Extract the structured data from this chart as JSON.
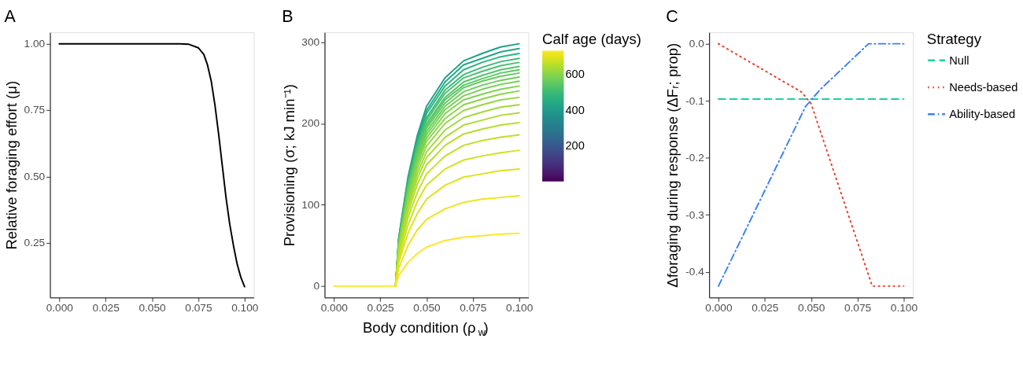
{
  "chart_data": [
    {
      "type": "line",
      "title": "A",
      "ylabel": "Relative foraging effort (μ)",
      "xlim": [
        -0.005,
        0.105
      ],
      "xticks": [
        {
          "value": 0,
          "label": "0.000"
        },
        {
          "value": 0.025,
          "label": "0.025"
        },
        {
          "value": 0.05,
          "label": "0.050"
        },
        {
          "value": 0.075,
          "label": "0.075"
        },
        {
          "value": 0.1,
          "label": "0.100"
        }
      ],
      "ylim": [
        0.044,
        1.043
      ],
      "yticks": [
        {
          "value": 0.25,
          "label": "0.25"
        },
        {
          "value": 0.5,
          "label": "0.50"
        },
        {
          "value": 0.75,
          "label": "0.75"
        },
        {
          "value": 1,
          "label": "1.00"
        }
      ],
      "grid": false,
      "legend": false,
      "x": [
        0,
        0.065,
        0.07,
        0.075,
        0.078,
        0.08,
        0.082,
        0.084,
        0.086,
        0.088,
        0.09,
        0.092,
        0.094,
        0.096,
        0.098,
        0.1
      ],
      "series": [
        {
          "color": "#000000",
          "values": [
            1,
            1,
            0.998,
            0.985,
            0.96,
            0.92,
            0.86,
            0.77,
            0.66,
            0.54,
            0.42,
            0.32,
            0.24,
            0.17,
            0.12,
            0.085
          ]
        }
      ]
    },
    {
      "type": "line",
      "title": "B",
      "xlabel": "Body condition (ρ$_{w}$)",
      "ylabel": "Provisioning (σ; kJ min⁻¹)",
      "clabel": "Calf age (days)",
      "clim": [
        1,
        730
      ],
      "cticks": [
        200,
        400,
        600
      ],
      "xlim": [
        -0.005,
        0.105
      ],
      "xticks": [
        {
          "value": 0,
          "label": "0.000"
        },
        {
          "value": 0.025,
          "label": "0.025"
        },
        {
          "value": 0.05,
          "label": "0.050"
        },
        {
          "value": 0.075,
          "label": "0.075"
        },
        {
          "value": 0.1,
          "label": "0.100"
        }
      ],
      "ylim": [
        -14,
        312
      ],
      "yticks": [
        0,
        100,
        200,
        300
      ],
      "grid": false,
      "legend": false,
      "x": [
        0,
        0.0333,
        0.035,
        0.04,
        0.045,
        0.05,
        0.06,
        0.07,
        0.08,
        0.09,
        0.1
      ],
      "series": [
        {
          "color": "#1fa088",
          "values": [
            null,
            0,
            60,
            134,
            185,
            221,
            256,
            277,
            286,
            294,
            298
          ]
        },
        {
          "color": "#22a884",
          "values": [
            null,
            0,
            58,
            131,
            181,
            216,
            251,
            272,
            280,
            288,
            292
          ]
        },
        {
          "color": "#2eb37c",
          "values": [
            null,
            0,
            57,
            129,
            177,
            212,
            246,
            266,
            275,
            282,
            286
          ]
        },
        {
          "color": "#3bbb75",
          "values": [
            null,
            0,
            56,
            126,
            174,
            207,
            241,
            260,
            269,
            276,
            280
          ]
        },
        {
          "color": "#48c16e",
          "values": [
            null,
            0,
            55,
            124,
            171,
            204,
            237,
            256,
            264,
            271,
            275
          ]
        },
        {
          "color": "#52c569",
          "values": [
            null,
            0,
            54,
            122,
            167,
            200,
            232,
            251,
            259,
            266,
            270
          ]
        },
        {
          "color": "#5ac864",
          "values": [
            null,
            0,
            53,
            120,
            165,
            197,
            229,
            247,
            255,
            262,
            266
          ]
        },
        {
          "color": "#63cb5f",
          "values": [
            null,
            0,
            52,
            118,
            162,
            194,
            225,
            244,
            252,
            258,
            262
          ]
        },
        {
          "color": "#6ccd5a",
          "values": [
            null,
            0,
            51,
            116,
            159,
            190,
            221,
            239,
            247,
            253,
            257
          ]
        },
        {
          "color": "#75d054",
          "values": [
            null,
            0,
            50,
            113,
            156,
            186,
            217,
            234,
            242,
            248,
            252
          ]
        },
        {
          "color": "#7fd34e",
          "values": [
            null,
            0,
            49,
            111,
            153,
            182,
            212,
            229,
            236,
            242,
            246
          ]
        },
        {
          "color": "#89d548",
          "values": [
            null,
            0,
            48,
            108,
            149,
            178,
            206,
            223,
            230,
            236,
            240
          ]
        },
        {
          "color": "#95d840",
          "values": [
            null,
            0,
            46,
            104,
            144,
            172,
            200,
            216,
            223,
            229,
            232
          ]
        },
        {
          "color": "#a0da39",
          "values": [
            null,
            0,
            45,
            100,
            138,
            165,
            192,
            207,
            214,
            220,
            223
          ]
        },
        {
          "color": "#addc30",
          "values": [
            null,
            0,
            43,
            96,
            132,
            158,
            183,
            198,
            204,
            210,
            213
          ]
        },
        {
          "color": "#b5de2b",
          "values": [
            null,
            0,
            40,
            90,
            125,
            149,
            173,
            187,
            193,
            198,
            201
          ]
        },
        {
          "color": "#c2df23",
          "values": [
            null,
            0,
            37,
            84,
            115,
            138,
            160,
            173,
            179,
            183,
            186
          ]
        },
        {
          "color": "#d2e21b",
          "values": [
            null,
            0,
            33,
            75,
            104,
            124,
            144,
            155,
            160,
            164,
            167
          ]
        },
        {
          "color": "#dde318",
          "values": [
            null,
            0,
            29,
            65,
            89,
            107,
            124,
            134,
            138,
            142,
            144
          ]
        },
        {
          "color": "#ece51b",
          "values": [
            null,
            0,
            22,
            50,
            69,
            82,
            95,
            103,
            107,
            109,
            111
          ]
        },
        {
          "color": "#fde725",
          "values": [
            0,
            0,
            13,
            29,
            40,
            48,
            56,
            60,
            62,
            64,
            65
          ]
        }
      ]
    },
    {
      "type": "line",
      "title": "C",
      "ylabel": "Δforaging during response (ΔFᵣ; prop)",
      "legend_title": "Strategy",
      "legend": "right",
      "xlim": [
        -0.005,
        0.105
      ],
      "xticks": [
        {
          "value": 0,
          "label": "0.000"
        },
        {
          "value": 0.025,
          "label": "0.025"
        },
        {
          "value": 0.05,
          "label": "0.050"
        },
        {
          "value": 0.075,
          "label": "0.075"
        },
        {
          "value": 0.1,
          "label": "0.100"
        }
      ],
      "ylim": [
        -0.445,
        0.02
      ],
      "yticks": [
        {
          "value": -0.4,
          "label": "-0.4"
        },
        {
          "value": -0.3,
          "label": "-0.3"
        },
        {
          "value": -0.2,
          "label": "-0.2"
        },
        {
          "value": -0.1,
          "label": "-0.1"
        },
        {
          "value": 0,
          "label": "0.0"
        }
      ],
      "grid": false,
      "series": [
        {
          "name": "Null",
          "color": "#19d3a0",
          "line_style": "dashed",
          "x": [
            0,
            0.1
          ],
          "values": [
            -0.097,
            -0.097
          ]
        },
        {
          "name": "Needs-based",
          "color": "#ee3b24",
          "line_style": "dotted",
          "x": [
            0,
            0.045,
            0.05,
            0.083,
            0.1
          ],
          "values": [
            0,
            -0.085,
            -0.105,
            -0.425,
            -0.425
          ]
        },
        {
          "name": "Ability-based",
          "color": "#3b82f6",
          "line_style": "dashdot",
          "x": [
            0,
            0.047,
            0.055,
            0.081,
            0.1
          ],
          "values": [
            -0.425,
            -0.11,
            -0.08,
            0,
            0
          ]
        }
      ]
    }
  ]
}
